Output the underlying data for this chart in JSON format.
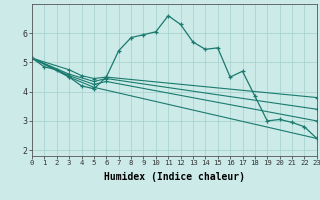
{
  "xlabel": "Humidex (Indice chaleur)",
  "bg_color": "#cceae8",
  "grid_color": "#aad4d0",
  "line_color": "#1a7a6e",
  "line1_x": [
    0,
    1,
    2,
    3,
    4,
    5,
    6,
    7,
    8,
    9,
    10,
    11,
    12,
    13,
    14,
    15,
    16,
    17,
    18,
    19,
    20,
    21,
    22,
    23
  ],
  "line1_y": [
    5.15,
    4.85,
    4.75,
    4.5,
    4.2,
    4.1,
    4.5,
    5.4,
    5.85,
    5.95,
    6.05,
    6.6,
    6.3,
    5.7,
    5.45,
    5.5,
    4.5,
    4.7,
    3.85,
    3.0,
    3.05,
    2.95,
    2.8,
    2.4
  ],
  "line2_x": [
    0,
    3,
    4,
    5,
    6,
    23
  ],
  "line2_y": [
    5.15,
    4.75,
    4.55,
    4.45,
    4.5,
    3.8
  ],
  "line3_x": [
    0,
    3,
    5,
    6,
    23
  ],
  "line3_y": [
    5.15,
    4.6,
    4.35,
    4.45,
    3.4
  ],
  "line4_x": [
    0,
    3,
    5,
    6,
    23
  ],
  "line4_y": [
    5.15,
    4.55,
    4.25,
    4.35,
    3.0
  ],
  "line5_x": [
    0,
    3,
    5,
    23
  ],
  "line5_y": [
    5.15,
    4.5,
    4.15,
    2.4
  ],
  "ylim": [
    1.8,
    7.0
  ],
  "xlim": [
    0,
    23
  ],
  "yticks": [
    2,
    3,
    4,
    5,
    6
  ],
  "xticks": [
    0,
    1,
    2,
    3,
    4,
    5,
    6,
    7,
    8,
    9,
    10,
    11,
    12,
    13,
    14,
    15,
    16,
    17,
    18,
    19,
    20,
    21,
    22,
    23
  ]
}
